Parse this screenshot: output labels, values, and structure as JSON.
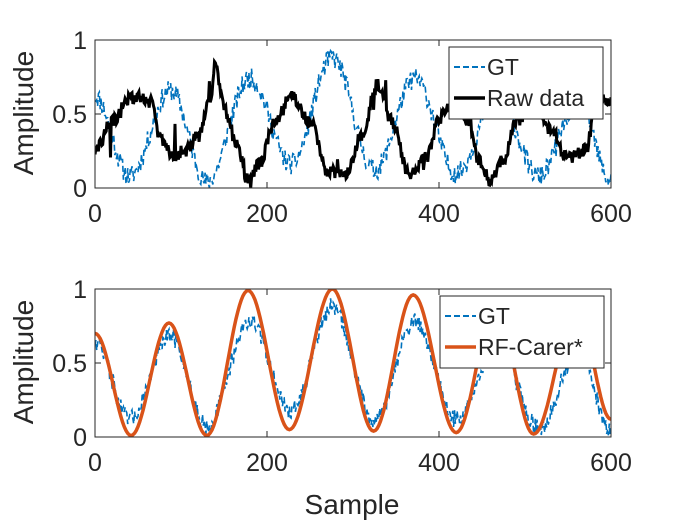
{
  "chart_data": [
    {
      "type": "line",
      "title": "",
      "xlabel": "",
      "ylabel": "Amplitude",
      "xlim": [
        0,
        600
      ],
      "ylim": [
        0,
        1
      ],
      "xticks": [
        "0",
        "200",
        "400",
        "600"
      ],
      "yticks": [
        "0",
        "0.5",
        "1"
      ],
      "grid": false,
      "legend_position": "top-right",
      "series": [
        {
          "name": "GT",
          "style": "dashed-noisy",
          "color": "#0072BD",
          "x": [
            0,
            40,
            88,
            130,
            180,
            228,
            276,
            325,
            372,
            420,
            468,
            516,
            562,
            600
          ],
          "values": [
            0.62,
            0.08,
            0.66,
            0.04,
            0.74,
            0.16,
            0.88,
            0.12,
            0.74,
            0.1,
            0.62,
            0.08,
            0.58,
            0.05
          ]
        },
        {
          "name": "Raw data",
          "style": "solid-noisy",
          "color": "#000000",
          "x": [
            0,
            20,
            40,
            55,
            65,
            75,
            90,
            105,
            120,
            135,
            140,
            150,
            165,
            178,
            190,
            210,
            228,
            250,
            270,
            290,
            310,
            328,
            345,
            365,
            385,
            400,
            410,
            420,
            435,
            445,
            460,
            475,
            490,
            510,
            530,
            550,
            570,
            585,
            600
          ],
          "values": [
            0.25,
            0.45,
            0.6,
            0.62,
            0.58,
            0.35,
            0.22,
            0.25,
            0.35,
            0.6,
            0.85,
            0.55,
            0.3,
            0.05,
            0.15,
            0.45,
            0.62,
            0.45,
            0.12,
            0.08,
            0.35,
            0.7,
            0.45,
            0.1,
            0.2,
            0.45,
            0.55,
            0.6,
            0.45,
            0.2,
            0.05,
            0.2,
            0.45,
            0.58,
            0.4,
            0.2,
            0.25,
            0.62,
            0.58
          ]
        }
      ]
    },
    {
      "type": "line",
      "title": "",
      "xlabel": "Sample",
      "ylabel": "Amplitude",
      "xlim": [
        0,
        600
      ],
      "ylim": [
        0,
        1
      ],
      "xticks": [
        "0",
        "200",
        "400",
        "600"
      ],
      "yticks": [
        "0",
        "0.5",
        "1"
      ],
      "grid": false,
      "legend_position": "top-right",
      "series": [
        {
          "name": "GT",
          "style": "dashed-noisy",
          "color": "#0072BD",
          "x": [
            0,
            40,
            88,
            130,
            180,
            228,
            276,
            325,
            372,
            420,
            468,
            516,
            562,
            600
          ],
          "values": [
            0.65,
            0.12,
            0.68,
            0.08,
            0.78,
            0.18,
            0.88,
            0.12,
            0.78,
            0.12,
            0.62,
            0.06,
            0.58,
            0.05
          ]
        },
        {
          "name": "RF-Carer*",
          "style": "smooth",
          "color": "#D95319",
          "x": [
            0,
            42,
            86,
            130,
            178,
            226,
            276,
            324,
            370,
            420,
            466,
            510,
            560,
            600
          ],
          "values": [
            0.7,
            0.01,
            0.77,
            0.01,
            0.99,
            0.05,
            1.0,
            0.04,
            0.96,
            0.03,
            0.88,
            0.02,
            0.86,
            0.12
          ]
        }
      ]
    }
  ]
}
